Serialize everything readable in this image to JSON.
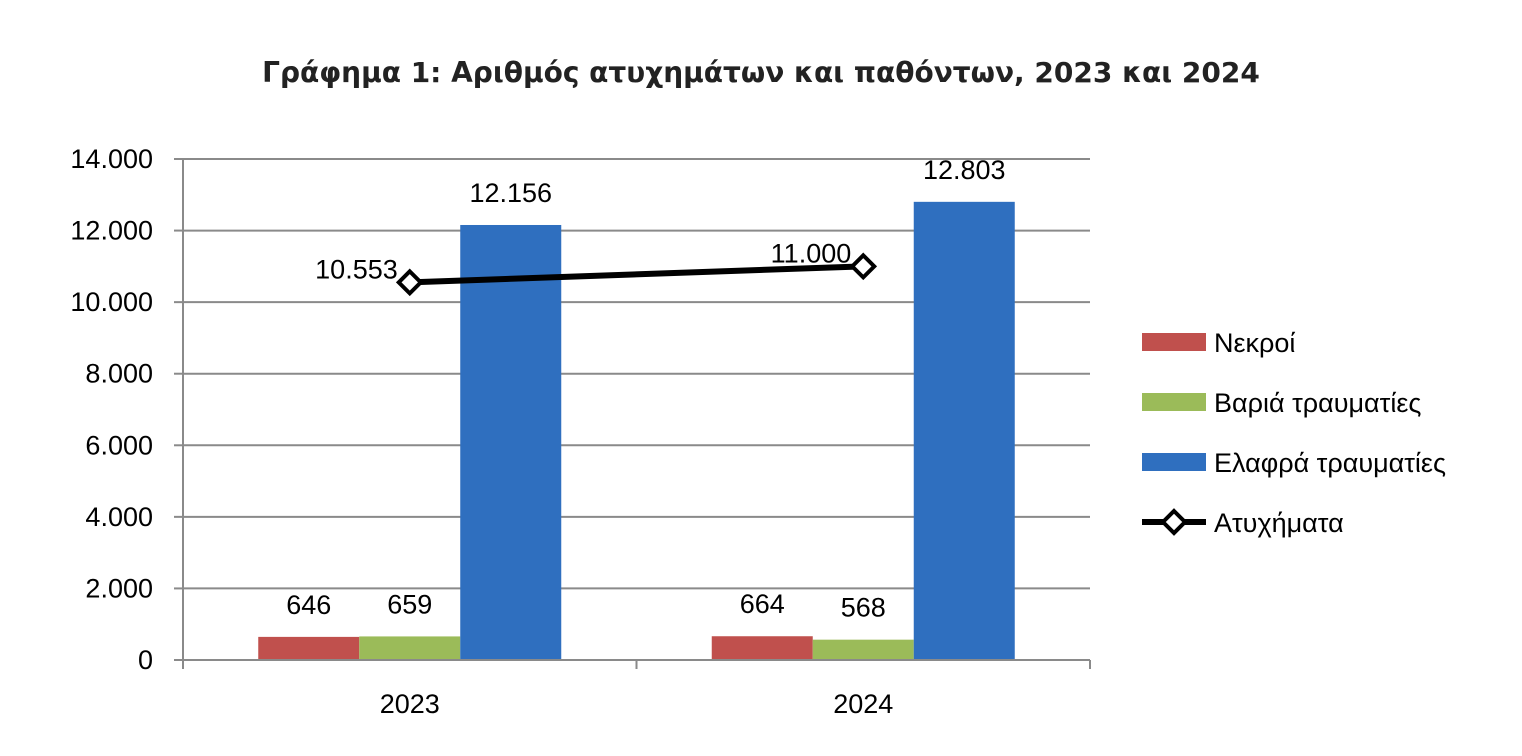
{
  "chart_data": {
    "type": "bar",
    "title": "Γράφημα 1: Αριθμός ατυχημάτων και παθόντων, 2023 και 2024",
    "categories": [
      "2023",
      "2024"
    ],
    "series": [
      {
        "name": "Νεκροί",
        "kind": "bar",
        "color": "#C0504D",
        "values": [
          646,
          664
        ],
        "labels": [
          "646",
          "664"
        ]
      },
      {
        "name": "Βαριά τραυματίες",
        "kind": "bar",
        "color": "#9BBB59",
        "values": [
          659,
          568
        ],
        "labels": [
          "659",
          "568"
        ]
      },
      {
        "name": "Ελαφρά τραυματίες",
        "kind": "bar",
        "color": "#2F6FBF",
        "values": [
          12156,
          12803
        ],
        "labels": [
          "12.156",
          "12.803"
        ]
      },
      {
        "name": "Ατυχήματα",
        "kind": "line",
        "color": "#000000",
        "marker": "diamond",
        "values": [
          10553,
          11000
        ],
        "labels": [
          "10.553",
          "11.000"
        ]
      }
    ],
    "ylim": [
      0,
      14000
    ],
    "yticks": [
      0,
      2000,
      4000,
      6000,
      8000,
      10000,
      12000,
      14000
    ],
    "ytick_labels": [
      "0",
      "2.000",
      "4.000",
      "6.000",
      "8.000",
      "10.000",
      "12.000",
      "14.000"
    ],
    "grid": true,
    "legend_position": "right"
  }
}
